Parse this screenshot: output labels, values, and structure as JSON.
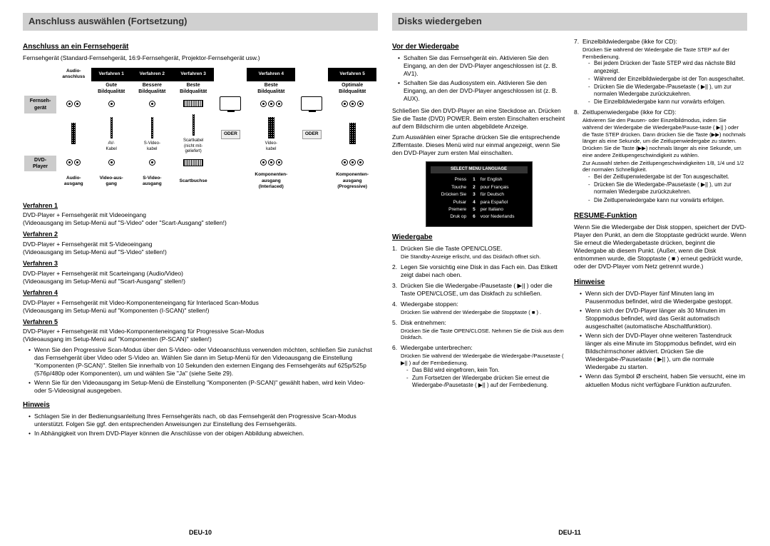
{
  "left": {
    "title": "Anschluss auswählen (Fortsetzung)",
    "section1": "Anschluss an ein Fernsehgerät",
    "intro": "Fernsehgerät (Standard-Fernsehgerät, 16:9-Fernsehgerät, Projektor-Fernsehgerät usw.)",
    "diagram": {
      "col0": "Audio-\nanschluss",
      "verfahren_headers": [
        "Verfahren 1",
        "Verfahren 2",
        "Verfahren 3",
        "Verfahren 4",
        "Verfahren 5"
      ],
      "qualitaet": [
        "Gute\nBildqualität",
        "Bessere\nBildqualität",
        "Beste\nBildqualität",
        "Beste\nBildqualität",
        "Optimale\nBildqualität"
      ],
      "side_top": "Fernseh-\ngerät",
      "side_bottom": "DVD-\nPlayer",
      "oder": "ODER",
      "cable_labels": [
        "AV-\nKabel",
        "S-Video-\nkabel",
        "Scartkabel\n(nicht mit-\ngeliefert)",
        "",
        "Video-\nkabel",
        ""
      ],
      "bottom_labels": [
        "Audio-\nausgang",
        "Video-aus-\ngang",
        "S-Video-\nausgang",
        "Scartbuchse",
        "Komponenten-\nausgang\n(Interlaced)",
        "Komponenten-\nausgang\n(Progressive)"
      ]
    },
    "verfahren": [
      {
        "t": "Verfahren 1",
        "l1": "DVD-Player + Fernsehgerät mit Videoeingang",
        "l2": "(Videoausgang im Setup-Menü auf \"S-Video\" oder \"Scart-Ausgang\" stellen!)"
      },
      {
        "t": "Verfahren 2",
        "l1": "DVD-Player + Fernsehgerät mit S-Videoeingang",
        "l2": "(Videoausgang im Setup-Menü auf \"S-Video\" stellen!)"
      },
      {
        "t": "Verfahren 3",
        "l1": "DVD-Player + Fernsehgerät mit Scarteingang (Audio/Video)",
        "l2": "(Videoausgang im Setup-Menü auf \"Scart-Ausgang\" stellen!)"
      },
      {
        "t": "Verfahren 4",
        "l1": "DVD-Player + Fernsehgerät mit Video-Komponenteneingang für Interlaced Scan-Modus",
        "l2": "(Videoausgang im Setup-Menü auf \"Komponenten (I-SCAN)\" stellen!)"
      },
      {
        "t": "Verfahren 5",
        "l1": "DVD-Player + Fernsehgerät mit Video-Komponenteneingang für Progressive Scan-Modus",
        "l2": "(Videoausgang im Setup-Menü auf \"Komponenten (P-SCAN)\" stellen!)"
      }
    ],
    "v5_bullets": [
      "Wenn Sie den Progressive Scan-Modus über den S-Video- oder Videoanschluss verwenden möchten, schließen Sie zunächst das Fernsehgerät über Video oder S-Video an. Wählen Sie dann im Setup-Menü für den Videoausgang die Einstellung \"Komponenten (P-SCAN)\". Stellen Sie innerhalb von 10 Sekunden den externen Eingang des Fernsehgeräts auf 625p/525p (576p/480p oder Komponenten), um und wählen Sie \"Ja\" (siehe Seite 29).",
      "Wenn Sie für den Videoausgang im Setup-Menü die Einstellung \"Komponenten (P-SCAN)\" gewählt haben, wird kein Video- oder S-Videosignal ausgegeben."
    ],
    "hinweis_t": "Hinweis",
    "hinweis": [
      "Schlagen Sie in der Bedienungsanleitung Ihres Fernsehgeräts nach, ob das Fernsehgerät den Progressive Scan-Modus unterstützt. Folgen Sie ggf. den entsprechenden Anweisungen zur Einstellung des Fernsehgeräts.",
      "In Abhängigkeit von Ihrem DVD-Player können die Anschlüsse von der obigen Abbildung abweichen."
    ],
    "footer": "DEU-10"
  },
  "right": {
    "title": "Disks wiedergeben",
    "colA": {
      "s1_t": "Vor der Wiedergabe",
      "s1_b": [
        "Schalten Sie das Fernsehgerät ein. Aktivieren Sie den Eingang, an den der DVD-Player angeschlossen ist (z. B. AV1).",
        "Schalten Sie das Audiosystem ein. Aktivieren Sie den Eingang, an den der DVD-Player angeschlossen ist (z. B. AUX)."
      ],
      "s1_p1": "Schließen Sie den DVD-Player an eine Steckdose an. Drücken Sie die Taste (DVD) POWER. Beim ersten Einschalten erscheint auf dem Bildschirm die unten abgebildete Anzeige.",
      "s1_p2": "Zum Auswählen einer Sprache drücken Sie die entsprechende Zifferntaste. Dieses Menü wird nur einmal angezeigt, wenn Sie den DVD-Player zum ersten Mal einschalten.",
      "menu": {
        "title": "SELECT MENU LANGUAGE",
        "rows": [
          [
            "Press",
            "1",
            "for English"
          ],
          [
            "Touche",
            "2",
            "pour Français"
          ],
          [
            "Drücken Sie",
            "3",
            "für Deutsch"
          ],
          [
            "Pulsar",
            "4",
            "para Español"
          ],
          [
            "Premere",
            "5",
            "per Italiano"
          ],
          [
            "Druk op",
            "6",
            "voor Nederlands"
          ]
        ]
      },
      "s2_t": "Wiedergabe",
      "s2_items": [
        {
          "n": "1.",
          "t": "Drücken Sie die Taste OPEN/CLOSE.",
          "sub": [
            "Die Standby-Anzeige erlischt, und das Diskfach öffnet sich."
          ]
        },
        {
          "n": "2.",
          "t": "Legen Sie vorsichtig eine Disk in das Fach ein. Das Etikett zeigt dabei nach oben."
        },
        {
          "n": "3.",
          "t": "Drücken Sie die Wiedergabe-/Pausetaste ( ▶|| ) oder die Taste OPEN/CLOSE, um das Diskfach zu schließen."
        },
        {
          "n": "4.",
          "t": "Wiedergabe stoppen:",
          "sub": [
            "Drücken Sie während der Wiedergabe die Stopptaste ( ■ ) ."
          ]
        },
        {
          "n": "5.",
          "t": "Disk entnehmen:",
          "sub": [
            "Drücken Sie die Taste OPEN/CLOSE. Nehmen Sie die Disk aus dem Diskfach."
          ]
        },
        {
          "n": "6.",
          "t": "Wiedergabe unterbrechen:",
          "sub": [
            "Drücken Sie während der Wiedergabe die Wiedergabe-/Pausetaste ( ▶|| ) auf der Fernbedienung."
          ],
          "dash": [
            "Das Bild wird eingefroren, kein Ton.",
            "Zum Fortsetzen der Wiedergabe drücken Sie erneut die Wiedergabe-/Pausetaste ( ▶|| ) auf der Fernbedienung."
          ]
        }
      ]
    },
    "colB": {
      "n7_t": "Einzelbildwiedergabe (ikke for CD):",
      "n7_sub": "Drücken Sie während der Wiedergabe die Taste STEP auf der Fernbedienung.",
      "n7_dash": [
        "Bei jedem Drücken der Taste STEP wird das nächste Bild angezeigt.",
        "Während der Einzelbildwiedergabe ist der Ton ausgeschaltet.",
        "Drücken Sie die Wiedergabe-/Pausetaste ( ▶|| ), um zur normalen Wiedergabe zurückzukehren.",
        "Die Einzelbildwiedergabe kann nur vorwärts erfolgen."
      ],
      "n8_t": "Zeitlupenwiedergabe (ikke for CD):",
      "n8_p": "Aktivieren Sie den Pausen- oder Einzelbildmodus, indem Sie während der Wiedergabe die Wiedergabe/Pause-taste ( ▶|| ) oder die Taste STEP drücken. Dann drücken Sie die Taste (▶▶) nochmals länger als eine Sekunde, um die Zeitlupenwiedergabe zu starten. Drücken Sie die Taste (▶▶) nochmals länger als eine Sekunde, um eine andere Zeitlupengeschwindigkeit zu wählen.",
      "n8_p2": "Zur Auswahl stehen die Zeitlupengeschwindigkeiten 1/8, 1/4 und 1/2 der normalen Schnelligkeit.",
      "n8_dash": [
        "Bei der Zeitlupenwiedergabe ist der Ton ausgeschaltet.",
        "Drücken Sie die Wiedergabe-/Pausetaste ( ▶|| ), um zur normalen Wiedergabe zurückzukehren.",
        "Die Zeitlupenwiedergabe kann nur vorwärts erfolgen."
      ],
      "resume_t": "RESUME-Funktion",
      "resume_p": "Wenn Sie die Wiedergabe der Disk stoppen, speichert der DVD-Player den Punkt, an dem die Stopptaste gedrückt wurde. Wenn Sie erneut die Wiedergabetaste drücken, beginnt die Wiedergabe ab diesem Punkt. (Außer, wenn die Disk entnommen wurde, die Stopptaste ( ■ ) erneut gedrückt wurde, oder der DVD-Player vom Netz getrennt wurde.)",
      "hinweise_t": "Hinweise",
      "hinweise": [
        "Wenn sich der DVD-Player fünf Minuten lang im Pausenmodus befindet, wird die Wiedergabe gestoppt.",
        "Wenn sich der DVD-Player länger als 30 Minuten im Stoppmodus befindet, wird das Gerät automatisch ausgeschaltet (automatische Abschaltfunktion).",
        "Wenn sich der DVD-Player ohne weiteren Tastendruck länger als eine Minute im Stoppmodus befindet, wird ein Bildschirmschoner aktiviert. Drücken Sie die Wiedergabe-/Pausetaste ( ▶|| ), um die normale Wiedergabe zu starten.",
        "Wenn das Symbol Ø erscheint, haben Sie versucht, eine im aktuellen Modus nicht verfügbare Funktion aufzurufen."
      ]
    },
    "footer": "DEU-11"
  }
}
